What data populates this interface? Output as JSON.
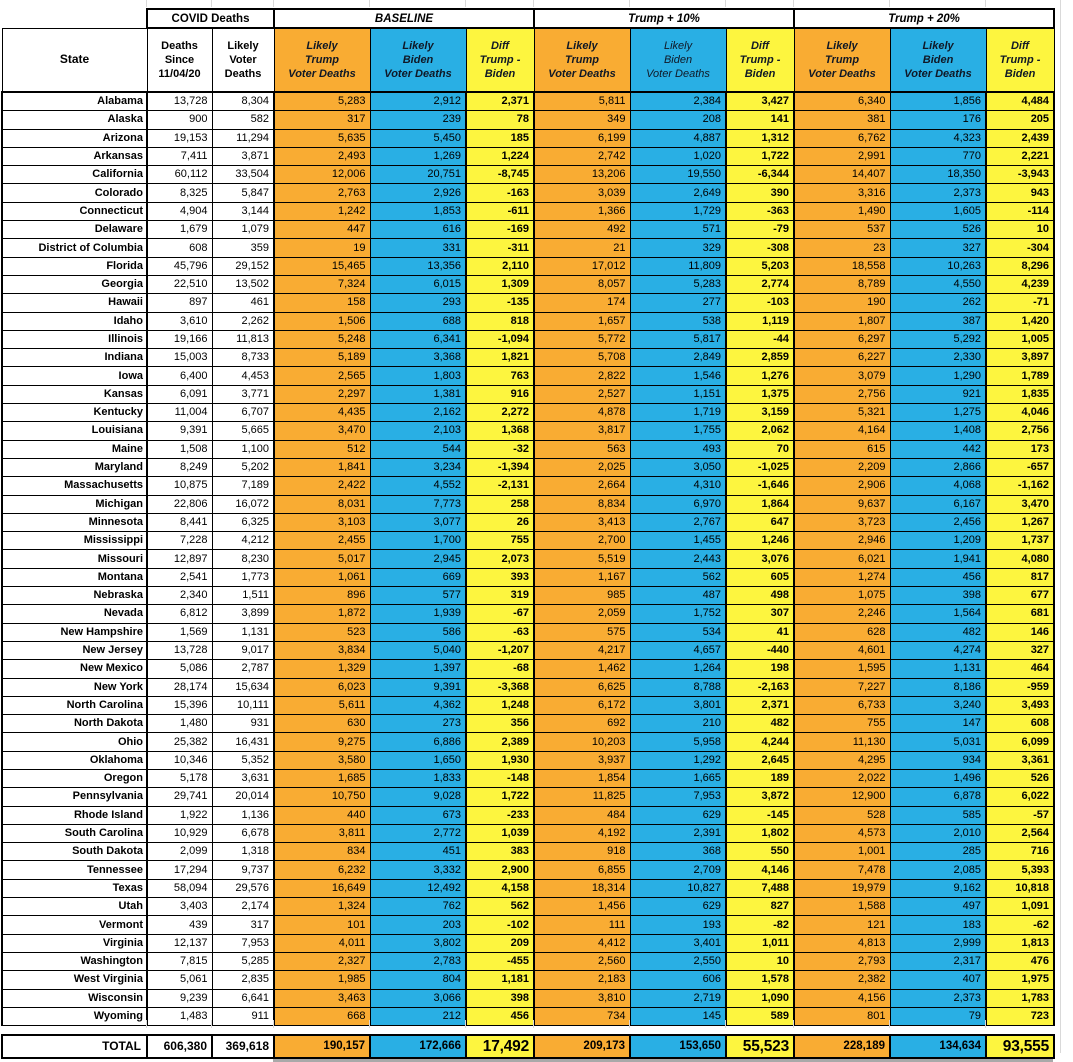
{
  "title_row": {
    "covid_deaths": "COVID Deaths",
    "baseline": "BASELINE",
    "trump_plus_10": "Trump + 10%",
    "trump_plus_20": "Trump + 20%"
  },
  "column_headers": {
    "state": "State",
    "deaths_since": "Deaths\nSince\n11/04/20",
    "likely_voter": "Likely\nVoter\nDeaths",
    "likely_trump": "Likely\nTrump\nVoter Deaths",
    "likely_biden": "Likely\nBiden\nVoter Deaths",
    "diff": "Diff\nTrump -\nBiden"
  },
  "colors": {
    "trump_orange": "#F9AC33",
    "biden_blue": "#29AFE4",
    "diff_yellow": "#FDF53F"
  },
  "rows": [
    [
      "Alabama",
      "13,728",
      "8,304",
      "5,283",
      "2,912",
      "2,371",
      "5,811",
      "2,384",
      "3,427",
      "6,340",
      "1,856",
      "4,484"
    ],
    [
      "Alaska",
      "900",
      "582",
      "317",
      "239",
      "78",
      "349",
      "208",
      "141",
      "381",
      "176",
      "205"
    ],
    [
      "Arizona",
      "19,153",
      "11,294",
      "5,635",
      "5,450",
      "185",
      "6,199",
      "4,887",
      "1,312",
      "6,762",
      "4,323",
      "2,439"
    ],
    [
      "Arkansas",
      "7,411",
      "3,871",
      "2,493",
      "1,269",
      "1,224",
      "2,742",
      "1,020",
      "1,722",
      "2,991",
      "770",
      "2,221"
    ],
    [
      "California",
      "60,112",
      "33,504",
      "12,006",
      "20,751",
      "-8,745",
      "13,206",
      "19,550",
      "-6,344",
      "14,407",
      "18,350",
      "-3,943"
    ],
    [
      "Colorado",
      "8,325",
      "5,847",
      "2,763",
      "2,926",
      "-163",
      "3,039",
      "2,649",
      "390",
      "3,316",
      "2,373",
      "943"
    ],
    [
      "Connecticut",
      "4,904",
      "3,144",
      "1,242",
      "1,853",
      "-611",
      "1,366",
      "1,729",
      "-363",
      "1,490",
      "1,605",
      "-114"
    ],
    [
      "Delaware",
      "1,679",
      "1,079",
      "447",
      "616",
      "-169",
      "492",
      "571",
      "-79",
      "537",
      "526",
      "10"
    ],
    [
      "District of Columbia",
      "608",
      "359",
      "19",
      "331",
      "-311",
      "21",
      "329",
      "-308",
      "23",
      "327",
      "-304"
    ],
    [
      "Florida",
      "45,796",
      "29,152",
      "15,465",
      "13,356",
      "2,110",
      "17,012",
      "11,809",
      "5,203",
      "18,558",
      "10,263",
      "8,296"
    ],
    [
      "Georgia",
      "22,510",
      "13,502",
      "7,324",
      "6,015",
      "1,309",
      "8,057",
      "5,283",
      "2,774",
      "8,789",
      "4,550",
      "4,239"
    ],
    [
      "Hawaii",
      "897",
      "461",
      "158",
      "293",
      "-135",
      "174",
      "277",
      "-103",
      "190",
      "262",
      "-71"
    ],
    [
      "Idaho",
      "3,610",
      "2,262",
      "1,506",
      "688",
      "818",
      "1,657",
      "538",
      "1,119",
      "1,807",
      "387",
      "1,420"
    ],
    [
      "Illinois",
      "19,166",
      "11,813",
      "5,248",
      "6,341",
      "-1,094",
      "5,772",
      "5,817",
      "-44",
      "6,297",
      "5,292",
      "1,005"
    ],
    [
      "Indiana",
      "15,003",
      "8,733",
      "5,189",
      "3,368",
      "1,821",
      "5,708",
      "2,849",
      "2,859",
      "6,227",
      "2,330",
      "3,897"
    ],
    [
      "Iowa",
      "6,400",
      "4,453",
      "2,565",
      "1,803",
      "763",
      "2,822",
      "1,546",
      "1,276",
      "3,079",
      "1,290",
      "1,789"
    ],
    [
      "Kansas",
      "6,091",
      "3,771",
      "2,297",
      "1,381",
      "916",
      "2,527",
      "1,151",
      "1,375",
      "2,756",
      "921",
      "1,835"
    ],
    [
      "Kentucky",
      "11,004",
      "6,707",
      "4,435",
      "2,162",
      "2,272",
      "4,878",
      "1,719",
      "3,159",
      "5,321",
      "1,275",
      "4,046"
    ],
    [
      "Louisiana",
      "9,391",
      "5,665",
      "3,470",
      "2,103",
      "1,368",
      "3,817",
      "1,755",
      "2,062",
      "4,164",
      "1,408",
      "2,756"
    ],
    [
      "Maine",
      "1,508",
      "1,100",
      "512",
      "544",
      "-32",
      "563",
      "493",
      "70",
      "615",
      "442",
      "173"
    ],
    [
      "Maryland",
      "8,249",
      "5,202",
      "1,841",
      "3,234",
      "-1,394",
      "2,025",
      "3,050",
      "-1,025",
      "2,209",
      "2,866",
      "-657"
    ],
    [
      "Massachusetts",
      "10,875",
      "7,189",
      "2,422",
      "4,552",
      "-2,131",
      "2,664",
      "4,310",
      "-1,646",
      "2,906",
      "4,068",
      "-1,162"
    ],
    [
      "Michigan",
      "22,806",
      "16,072",
      "8,031",
      "7,773",
      "258",
      "8,834",
      "6,970",
      "1,864",
      "9,637",
      "6,167",
      "3,470"
    ],
    [
      "Minnesota",
      "8,441",
      "6,325",
      "3,103",
      "3,077",
      "26",
      "3,413",
      "2,767",
      "647",
      "3,723",
      "2,456",
      "1,267"
    ],
    [
      "Mississippi",
      "7,228",
      "4,212",
      "2,455",
      "1,700",
      "755",
      "2,700",
      "1,455",
      "1,246",
      "2,946",
      "1,209",
      "1,737"
    ],
    [
      "Missouri",
      "12,897",
      "8,230",
      "5,017",
      "2,945",
      "2,073",
      "5,519",
      "2,443",
      "3,076",
      "6,021",
      "1,941",
      "4,080"
    ],
    [
      "Montana",
      "2,541",
      "1,773",
      "1,061",
      "669",
      "393",
      "1,167",
      "562",
      "605",
      "1,274",
      "456",
      "817"
    ],
    [
      "Nebraska",
      "2,340",
      "1,511",
      "896",
      "577",
      "319",
      "985",
      "487",
      "498",
      "1,075",
      "398",
      "677"
    ],
    [
      "Nevada",
      "6,812",
      "3,899",
      "1,872",
      "1,939",
      "-67",
      "2,059",
      "1,752",
      "307",
      "2,246",
      "1,564",
      "681"
    ],
    [
      "New Hampshire",
      "1,569",
      "1,131",
      "523",
      "586",
      "-63",
      "575",
      "534",
      "41",
      "628",
      "482",
      "146"
    ],
    [
      "New Jersey",
      "13,728",
      "9,017",
      "3,834",
      "5,040",
      "-1,207",
      "4,217",
      "4,657",
      "-440",
      "4,601",
      "4,274",
      "327"
    ],
    [
      "New Mexico",
      "5,086",
      "2,787",
      "1,329",
      "1,397",
      "-68",
      "1,462",
      "1,264",
      "198",
      "1,595",
      "1,131",
      "464"
    ],
    [
      "New York",
      "28,174",
      "15,634",
      "6,023",
      "9,391",
      "-3,368",
      "6,625",
      "8,788",
      "-2,163",
      "7,227",
      "8,186",
      "-959"
    ],
    [
      "North Carolina",
      "15,396",
      "10,111",
      "5,611",
      "4,362",
      "1,248",
      "6,172",
      "3,801",
      "2,371",
      "6,733",
      "3,240",
      "3,493"
    ],
    [
      "North Dakota",
      "1,480",
      "931",
      "630",
      "273",
      "356",
      "692",
      "210",
      "482",
      "755",
      "147",
      "608"
    ],
    [
      "Ohio",
      "25,382",
      "16,431",
      "9,275",
      "6,886",
      "2,389",
      "10,203",
      "5,958",
      "4,244",
      "11,130",
      "5,031",
      "6,099"
    ],
    [
      "Oklahoma",
      "10,346",
      "5,352",
      "3,580",
      "1,650",
      "1,930",
      "3,937",
      "1,292",
      "2,645",
      "4,295",
      "934",
      "3,361"
    ],
    [
      "Oregon",
      "5,178",
      "3,631",
      "1,685",
      "1,833",
      "-148",
      "1,854",
      "1,665",
      "189",
      "2,022",
      "1,496",
      "526"
    ],
    [
      "Pennsylvania",
      "29,741",
      "20,014",
      "10,750",
      "9,028",
      "1,722",
      "11,825",
      "7,953",
      "3,872",
      "12,900",
      "6,878",
      "6,022"
    ],
    [
      "Rhode Island",
      "1,922",
      "1,136",
      "440",
      "673",
      "-233",
      "484",
      "629",
      "-145",
      "528",
      "585",
      "-57"
    ],
    [
      "South Carolina",
      "10,929",
      "6,678",
      "3,811",
      "2,772",
      "1,039",
      "4,192",
      "2,391",
      "1,802",
      "4,573",
      "2,010",
      "2,564"
    ],
    [
      "South Dakota",
      "2,099",
      "1,318",
      "834",
      "451",
      "383",
      "918",
      "368",
      "550",
      "1,001",
      "285",
      "716"
    ],
    [
      "Tennessee",
      "17,294",
      "9,737",
      "6,232",
      "3,332",
      "2,900",
      "6,855",
      "2,709",
      "4,146",
      "7,478",
      "2,085",
      "5,393"
    ],
    [
      "Texas",
      "58,094",
      "29,576",
      "16,649",
      "12,492",
      "4,158",
      "18,314",
      "10,827",
      "7,488",
      "19,979",
      "9,162",
      "10,818"
    ],
    [
      "Utah",
      "3,403",
      "2,174",
      "1,324",
      "762",
      "562",
      "1,456",
      "629",
      "827",
      "1,588",
      "497",
      "1,091"
    ],
    [
      "Vermont",
      "439",
      "317",
      "101",
      "203",
      "-102",
      "111",
      "193",
      "-82",
      "121",
      "183",
      "-62"
    ],
    [
      "Virginia",
      "12,137",
      "7,953",
      "4,011",
      "3,802",
      "209",
      "4,412",
      "3,401",
      "1,011",
      "4,813",
      "2,999",
      "1,813"
    ],
    [
      "Washington",
      "7,815",
      "5,285",
      "2,327",
      "2,783",
      "-455",
      "2,560",
      "2,550",
      "10",
      "2,793",
      "2,317",
      "476"
    ],
    [
      "West Virginia",
      "5,061",
      "2,835",
      "1,985",
      "804",
      "1,181",
      "2,183",
      "606",
      "1,578",
      "2,382",
      "407",
      "1,975"
    ],
    [
      "Wisconsin",
      "9,239",
      "6,641",
      "3,463",
      "3,066",
      "398",
      "3,810",
      "2,719",
      "1,090",
      "4,156",
      "2,373",
      "1,783"
    ],
    [
      "Wyoming",
      "1,483",
      "911",
      "668",
      "212",
      "456",
      "734",
      "145",
      "589",
      "801",
      "79",
      "723"
    ]
  ],
  "total": {
    "label": "TOTAL",
    "values": [
      "606,380",
      "369,618",
      "190,157",
      "172,666",
      "17,492",
      "209,173",
      "153,650",
      "55,523",
      "228,189",
      "134,634",
      "93,555"
    ]
  }
}
